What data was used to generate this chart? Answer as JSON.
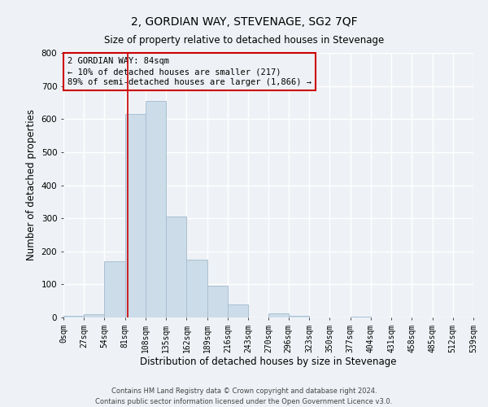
{
  "title": "2, GORDIAN WAY, STEVENAGE, SG2 7QF",
  "subtitle": "Size of property relative to detached houses in Stevenage",
  "xlabel": "Distribution of detached houses by size in Stevenage",
  "ylabel": "Number of detached properties",
  "bin_edges": [
    0,
    27,
    54,
    81,
    108,
    135,
    162,
    189,
    216,
    243,
    270,
    296,
    323,
    350,
    377,
    404,
    431,
    458,
    485,
    512,
    539
  ],
  "bar_heights": [
    5,
    10,
    170,
    615,
    655,
    305,
    175,
    97,
    40,
    0,
    12,
    5,
    0,
    0,
    3,
    0,
    0,
    0,
    0,
    0
  ],
  "bar_color": "#ccdce8",
  "bar_edgecolor": "#aac0d4",
  "bar_linewidth": 0.7,
  "ylim": [
    0,
    800
  ],
  "yticks": [
    0,
    100,
    200,
    300,
    400,
    500,
    600,
    700,
    800
  ],
  "property_size": 84,
  "property_line_color": "#cc0000",
  "annotation_box_color": "#cc0000",
  "annotation_text_line1": "2 GORDIAN WAY: 84sqm",
  "annotation_text_line2": "← 10% of detached houses are smaller (217)",
  "annotation_text_line3": "89% of semi-detached houses are larger (1,866) →",
  "footer_line1": "Contains HM Land Registry data © Crown copyright and database right 2024.",
  "footer_line2": "Contains public sector information licensed under the Open Government Licence v3.0.",
  "background_color": "#eef2f6",
  "grid_color": "#ffffff",
  "title_fontsize": 10,
  "subtitle_fontsize": 8.5,
  "tick_label_fontsize": 7,
  "axis_label_fontsize": 8.5,
  "annotation_fontsize": 7.5,
  "footer_fontsize": 6
}
